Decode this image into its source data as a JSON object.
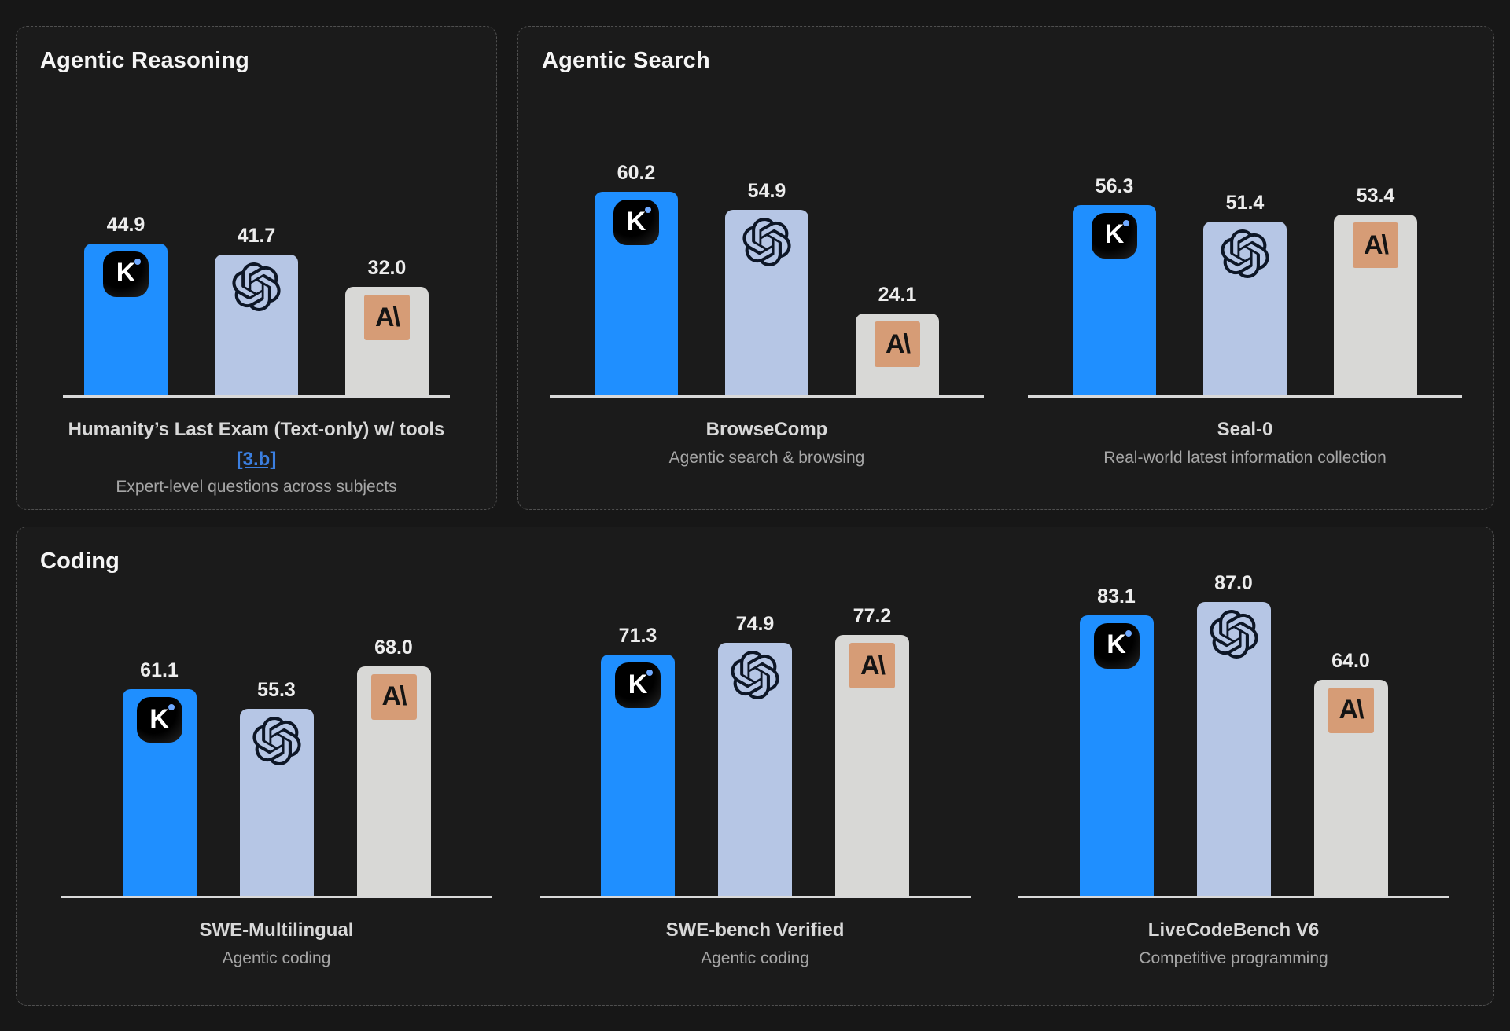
{
  "theme": {
    "background": "#171717",
    "panel_background": "#1b1b1b",
    "panel_border": "#4f4f4f",
    "axis_color": "#d9d9d9",
    "title_color": "#f5f5f5",
    "value_label_color": "#ededed",
    "benchmark_name_color": "#d8d8d8",
    "subtitle_color": "#a6a6a6",
    "link_color": "#3b7fe0",
    "kimi_bar_color": "#1f8fff",
    "openai_bar_color": "#b6c6e5",
    "anthropic_bar_color": "#d8d8d6",
    "anthropic_badge_color": "#d69c76"
  },
  "models": [
    {
      "name": "Kimi",
      "glyph": "K"
    },
    {
      "name": "OpenAI"
    },
    {
      "name": "Anthropic",
      "glyph": "A\\"
    }
  ],
  "panels": [
    {
      "title": "Agentic Reasoning",
      "charts": [
        {
          "name": "Humanity’s Last Exam (Text-only) w/ tools",
          "link": "[3.b]",
          "subtitle": "Expert-level questions across subjects",
          "values": [
            "44.9",
            "41.7",
            "32.0"
          ]
        }
      ]
    },
    {
      "title": "Agentic Search",
      "charts": [
        {
          "name": "BrowseComp",
          "subtitle": "Agentic search & browsing",
          "values": [
            "60.2",
            "54.9",
            "24.1"
          ]
        },
        {
          "name": "Seal-0",
          "subtitle": "Real-world latest information collection",
          "values": [
            "56.3",
            "51.4",
            "53.4"
          ]
        }
      ]
    },
    {
      "title": "Coding",
      "charts": [
        {
          "name": "SWE-Multilingual",
          "subtitle": "Agentic coding",
          "values": [
            "61.1",
            "55.3",
            "68.0"
          ]
        },
        {
          "name": "SWE-bench Verified",
          "subtitle": "Agentic coding",
          "values": [
            "71.3",
            "74.9",
            "77.2"
          ]
        },
        {
          "name": "LiveCodeBench V6",
          "subtitle": "Competitive programming",
          "values": [
            "83.1",
            "87.0",
            "64.0"
          ]
        }
      ]
    }
  ],
  "chart_data": [
    {
      "type": "bar",
      "panel": "Agentic Reasoning",
      "title": "Humanity’s Last Exam (Text-only) w/ tools",
      "reference": "[3.b]",
      "subtitle": "Expert-level questions across subjects",
      "categories": [
        "Kimi",
        "OpenAI",
        "Anthropic"
      ],
      "values": [
        44.9,
        41.7,
        32.0
      ],
      "ylim": [
        0,
        100
      ],
      "grid": false,
      "value_labels": true,
      "legend": "model logos shown on bars"
    },
    {
      "type": "bar",
      "panel": "Agentic Search",
      "title": "BrowseComp",
      "subtitle": "Agentic search & browsing",
      "categories": [
        "Kimi",
        "OpenAI",
        "Anthropic"
      ],
      "values": [
        60.2,
        54.9,
        24.1
      ],
      "ylim": [
        0,
        100
      ],
      "grid": false,
      "value_labels": true,
      "legend": "model logos shown on bars"
    },
    {
      "type": "bar",
      "panel": "Agentic Search",
      "title": "Seal-0",
      "subtitle": "Real-world latest information collection",
      "categories": [
        "Kimi",
        "OpenAI",
        "Anthropic"
      ],
      "values": [
        56.3,
        51.4,
        53.4
      ],
      "ylim": [
        0,
        100
      ],
      "grid": false,
      "value_labels": true,
      "legend": "model logos shown on bars"
    },
    {
      "type": "bar",
      "panel": "Coding",
      "title": "SWE-Multilingual",
      "subtitle": "Agentic coding",
      "categories": [
        "Kimi",
        "OpenAI",
        "Anthropic"
      ],
      "values": [
        61.1,
        55.3,
        68.0
      ],
      "ylim": [
        0,
        100
      ],
      "grid": false,
      "value_labels": true,
      "legend": "model logos shown on bars"
    },
    {
      "type": "bar",
      "panel": "Coding",
      "title": "SWE-bench Verified",
      "subtitle": "Agentic coding",
      "categories": [
        "Kimi",
        "OpenAI",
        "Anthropic"
      ],
      "values": [
        71.3,
        74.9,
        77.2
      ],
      "ylim": [
        0,
        100
      ],
      "grid": false,
      "value_labels": true,
      "legend": "model logos shown on bars"
    },
    {
      "type": "bar",
      "panel": "Coding",
      "title": "LiveCodeBench V6",
      "subtitle": "Competitive programming",
      "categories": [
        "Kimi",
        "OpenAI",
        "Anthropic"
      ],
      "values": [
        83.1,
        87.0,
        64.0
      ],
      "ylim": [
        0,
        100
      ],
      "grid": false,
      "value_labels": true,
      "legend": "model logos shown on bars"
    }
  ]
}
